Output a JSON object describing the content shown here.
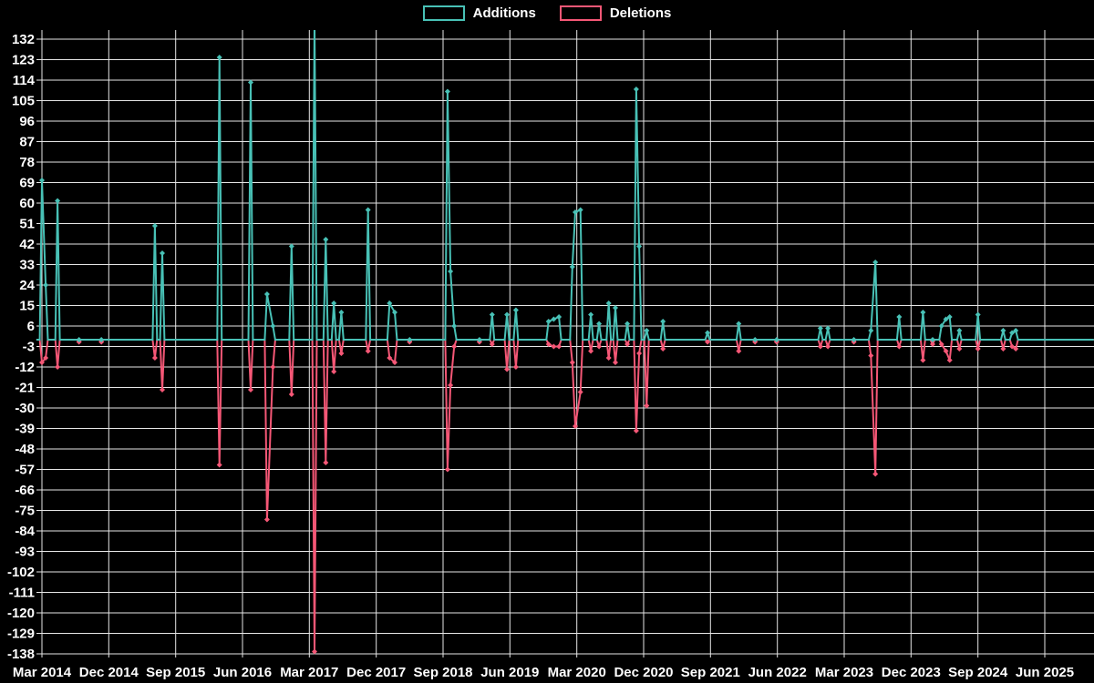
{
  "legend": {
    "additions_label": "Additions",
    "deletions_label": "Deletions"
  },
  "colors": {
    "additions": "#48c1b6",
    "deletions": "#f55776",
    "grid": "#e6e6e6",
    "text": "#ffffff",
    "background": "#000000"
  },
  "chart_data": {
    "type": "line",
    "series_names": [
      "Additions",
      "Deletions"
    ],
    "legend_position": "top",
    "grid": true,
    "marker": "diamond",
    "x_tick_labels": [
      "Mar 2014",
      "Dec 2014",
      "Sep 2015",
      "Jun 2016",
      "Mar 2017",
      "Dec 2017",
      "Sep 2018",
      "Jun 2019",
      "Mar 2020",
      "Dec 2020",
      "Sep 2021",
      "Jun 2022",
      "Mar 2023",
      "Dec 2023",
      "Sep 2024",
      "Jun 2025"
    ],
    "x_tick_interval_months": 9,
    "y_ticks": [
      132,
      123,
      114,
      105,
      96,
      87,
      78,
      69,
      60,
      51,
      42,
      33,
      24,
      15,
      6,
      -3,
      -12,
      -21,
      -30,
      -39,
      -48,
      -57,
      -66,
      -75,
      -84,
      -93,
      -102,
      -111,
      -120,
      -129,
      -138
    ],
    "y_tick_step": 9,
    "ylim": [
      -138,
      132
    ],
    "points_format": "[month_offset_from_Mar_2014, additions, deletions]",
    "points": [
      [
        0.0,
        70,
        -10
      ],
      [
        0.5,
        24,
        -8
      ],
      [
        2.1,
        61,
        -12
      ],
      [
        5.0,
        0,
        -1
      ],
      [
        8.0,
        0,
        -1
      ],
      [
        15.2,
        50,
        -8
      ],
      [
        16.2,
        38,
        -22
      ],
      [
        23.9,
        124,
        -55
      ],
      [
        28.1,
        113,
        -22
      ],
      [
        30.3,
        20,
        -79
      ],
      [
        31.1,
        6,
        -12
      ],
      [
        33.6,
        41,
        -24
      ],
      [
        36.7,
        140,
        -137
      ],
      [
        38.2,
        44,
        -54
      ],
      [
        39.3,
        16,
        -14
      ],
      [
        40.3,
        12,
        -6
      ],
      [
        43.9,
        57,
        -5
      ],
      [
        46.8,
        16,
        -8
      ],
      [
        47.5,
        12,
        -10
      ],
      [
        49.5,
        0,
        -1
      ],
      [
        54.6,
        109,
        -57
      ],
      [
        55.0,
        30,
        -20
      ],
      [
        55.5,
        6,
        -3
      ],
      [
        58.9,
        0,
        -1
      ],
      [
        60.6,
        11,
        -2
      ],
      [
        62.6,
        11,
        -13
      ],
      [
        63.8,
        13,
        -12
      ],
      [
        68.2,
        8,
        -2
      ],
      [
        68.9,
        9,
        -3
      ],
      [
        69.6,
        10,
        -3
      ],
      [
        71.4,
        32,
        -10
      ],
      [
        71.8,
        56,
        -38
      ],
      [
        72.5,
        57,
        -23
      ],
      [
        73.9,
        11,
        -5
      ],
      [
        75.0,
        7,
        -3
      ],
      [
        76.3,
        16,
        -8
      ],
      [
        77.2,
        14,
        -10
      ],
      [
        78.8,
        7,
        -2
      ],
      [
        80.0,
        110,
        -40
      ],
      [
        80.4,
        41,
        -6
      ],
      [
        81.4,
        4,
        -29
      ],
      [
        83.6,
        8,
        -4
      ],
      [
        89.6,
        3,
        -1
      ],
      [
        93.8,
        7,
        -5
      ],
      [
        96.0,
        0,
        -1
      ],
      [
        98.9,
        0,
        -1
      ],
      [
        104.8,
        5,
        -3
      ],
      [
        105.8,
        5,
        -3
      ],
      [
        109.3,
        0,
        -1
      ],
      [
        111.6,
        4,
        -7
      ],
      [
        112.2,
        34,
        -59
      ],
      [
        115.4,
        10,
        -3
      ],
      [
        118.6,
        12,
        -9
      ],
      [
        119.9,
        0,
        -2
      ],
      [
        121.1,
        6,
        -2
      ],
      [
        121.7,
        9,
        -5
      ],
      [
        122.2,
        10,
        -9
      ],
      [
        123.5,
        4,
        -4
      ],
      [
        126.0,
        11,
        -4
      ],
      [
        129.4,
        4,
        -4
      ],
      [
        130.6,
        3,
        -3
      ],
      [
        131.1,
        4,
        -4
      ]
    ]
  }
}
